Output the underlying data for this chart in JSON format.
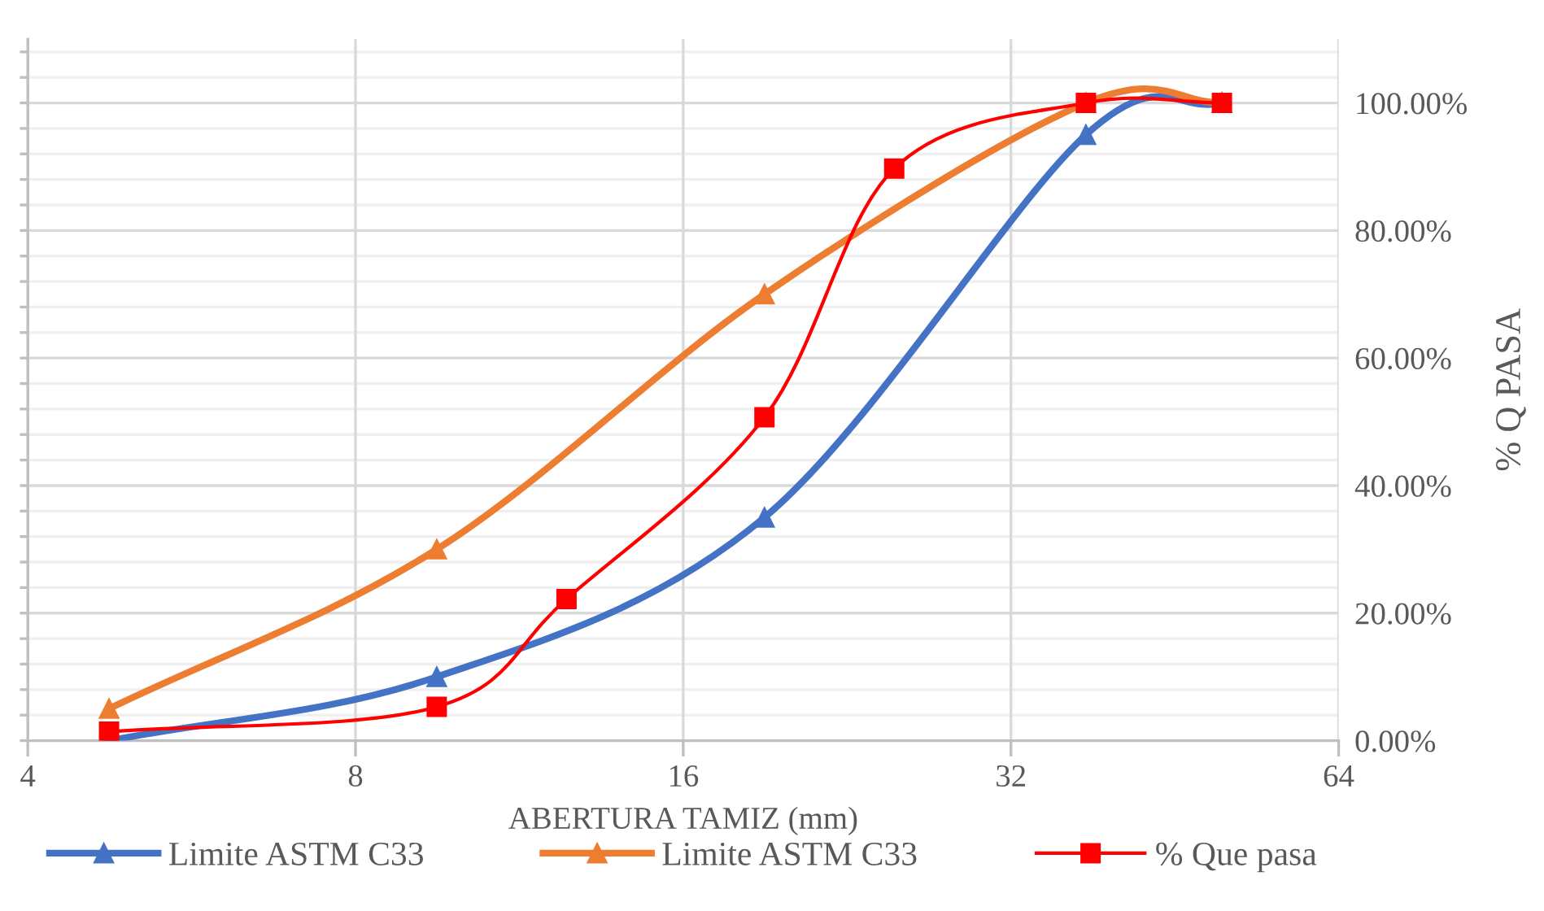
{
  "chart_data": {
    "type": "line",
    "xlabel": "ABERTURA TAMIZ (mm)",
    "ylabel": "% Q PASA",
    "log": "x",
    "xlim": [
      4,
      64
    ],
    "xticks": [
      4,
      8,
      16,
      32,
      64
    ],
    "ylim": [
      0,
      110
    ],
    "yticks": [
      {
        "value": 0,
        "label": "0.00%"
      },
      {
        "value": 4,
        "label": null
      },
      {
        "value": 8,
        "label": null
      },
      {
        "value": 12,
        "label": null
      },
      {
        "value": 16,
        "label": null
      },
      {
        "value": 20,
        "label": "20.00%"
      },
      {
        "value": 24,
        "label": null
      },
      {
        "value": 28,
        "label": null
      },
      {
        "value": 32,
        "label": null
      },
      {
        "value": 36,
        "label": null
      },
      {
        "value": 40,
        "label": "40.00%"
      },
      {
        "value": 44,
        "label": null
      },
      {
        "value": 48,
        "label": null
      },
      {
        "value": 52,
        "label": null
      },
      {
        "value": 56,
        "label": null
      },
      {
        "value": 60,
        "label": "60.00%"
      },
      {
        "value": 64,
        "label": null
      },
      {
        "value": 68,
        "label": null
      },
      {
        "value": 72,
        "label": null
      },
      {
        "value": 76,
        "label": null
      },
      {
        "value": 80,
        "label": "80.00%"
      },
      {
        "value": 84,
        "label": null
      },
      {
        "value": 88,
        "label": null
      },
      {
        "value": 92,
        "label": null
      },
      {
        "value": 96,
        "label": null
      },
      {
        "value": 100,
        "label": "100.00%"
      },
      {
        "value": 104,
        "label": null
      },
      {
        "value": 108,
        "label": null
      }
    ],
    "grid": true,
    "legend": "bottom",
    "line_style": "solid",
    "series": [
      {
        "name": "Limite ASTM C33",
        "color": "#4472c4",
        "marker": "triangle",
        "x": [
          4.75,
          9.5,
          19,
          37.5,
          50
        ],
        "values": [
          0,
          10,
          35,
          95,
          100
        ]
      },
      {
        "name": "Limite ASTM C33",
        "color": "#ed7d31",
        "marker": "triangle",
        "x": [
          4.75,
          9.5,
          19,
          37.5,
          50
        ],
        "values": [
          5,
          30,
          70,
          100,
          100
        ]
      },
      {
        "name": "% Que pasa",
        "color": "#ff0000",
        "marker": "square",
        "x": [
          4.75,
          9.5,
          12.5,
          19,
          25,
          37.5,
          50
        ],
        "values": [
          1.4,
          5.3,
          22.2,
          50.7,
          89.7,
          100,
          100
        ]
      }
    ]
  }
}
